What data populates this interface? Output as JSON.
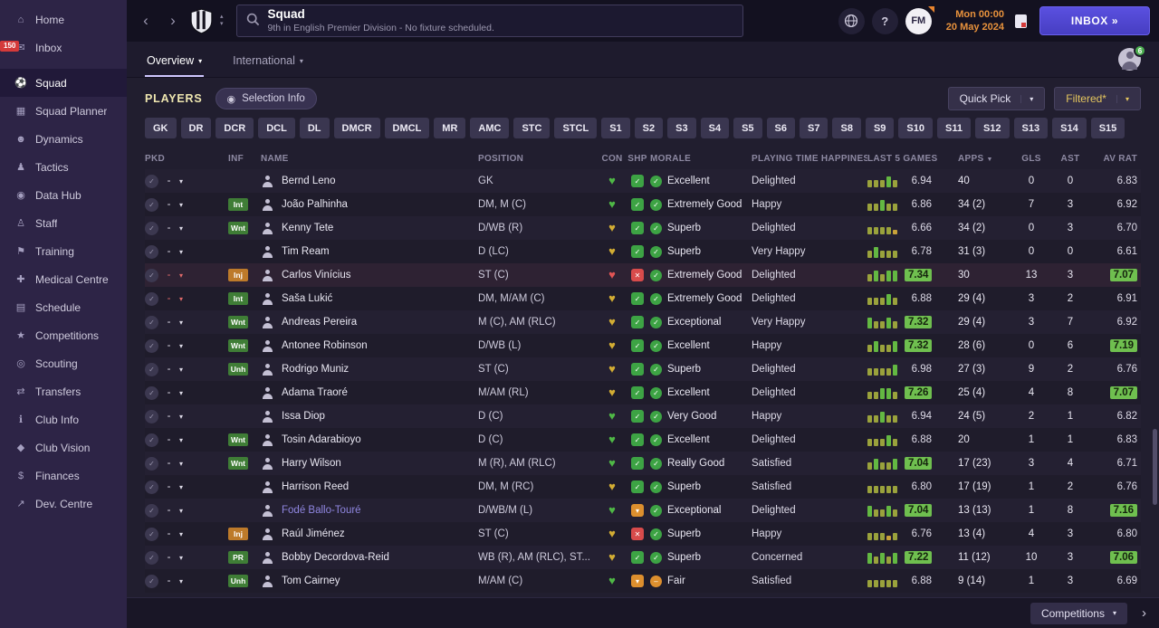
{
  "sidebar": {
    "items": [
      {
        "label": "Home",
        "icon": "home-icon"
      },
      {
        "label": "Inbox",
        "icon": "inbox-icon",
        "badge": "150"
      },
      {
        "label": "Squad",
        "icon": "squad-icon",
        "selected": true
      },
      {
        "label": "Squad Planner",
        "icon": "squad-planner-icon"
      },
      {
        "label": "Dynamics",
        "icon": "dynamics-icon"
      },
      {
        "label": "Tactics",
        "icon": "tactics-icon"
      },
      {
        "label": "Data Hub",
        "icon": "data-hub-icon"
      },
      {
        "label": "Staff",
        "icon": "staff-icon"
      },
      {
        "label": "Training",
        "icon": "training-icon"
      },
      {
        "label": "Medical Centre",
        "icon": "medical-centre-icon"
      },
      {
        "label": "Schedule",
        "icon": "schedule-icon"
      },
      {
        "label": "Competitions",
        "icon": "competitions-icon"
      },
      {
        "label": "Scouting",
        "icon": "scouting-icon"
      },
      {
        "label": "Transfers",
        "icon": "transfers-icon"
      },
      {
        "label": "Club Info",
        "icon": "club-info-icon"
      },
      {
        "label": "Club Vision",
        "icon": "club-vision-icon"
      },
      {
        "label": "Finances",
        "icon": "finances-icon"
      },
      {
        "label": "Dev. Centre",
        "icon": "dev-centre-icon"
      }
    ]
  },
  "topbar": {
    "title": "Squad",
    "subtitle": "9th in English Premier Division - No fixture scheduled.",
    "help": "?",
    "fm_logo": "FM",
    "clock": "Mon 00:00",
    "date": "20 May 2024",
    "inbox_label": "INBOX »"
  },
  "tabs": {
    "overview": "Overview",
    "international": "International",
    "profile_badge": "6"
  },
  "players_bar": {
    "title": "PLAYERS",
    "selection_info": "Selection Info",
    "quick_pick": "Quick Pick",
    "filtered": "Filtered*"
  },
  "position_filters": [
    "GK",
    "DR",
    "DCR",
    "DCL",
    "DL",
    "DMCR",
    "DMCL",
    "MR",
    "AMC",
    "STC",
    "STCL",
    "S1",
    "S2",
    "S3",
    "S4",
    "S5",
    "S6",
    "S7",
    "S8",
    "S9",
    "S10",
    "S11",
    "S12",
    "S13",
    "S14",
    "S15"
  ],
  "table": {
    "columns": [
      "PKD",
      "INF",
      "NAME",
      "POSITION",
      "CON",
      "SHP",
      "MORALE",
      "PLAYING TIME HAPPINESS",
      "LAST 5 GAMES",
      "APPS",
      "GLS",
      "AST",
      "AV RAT"
    ],
    "sorted_column": "APPS",
    "rows": [
      {
        "name": "Bernd Leno",
        "link": false,
        "inf": "",
        "inf_color": "",
        "position": "GK",
        "con": "g",
        "shp": "g",
        "morale": "Excellent",
        "morale_color": "g",
        "happiness": "Delighted",
        "last5_bars": [
          2,
          2,
          2,
          3,
          2
        ],
        "last5": "6.94",
        "last5_hl": false,
        "apps": "40",
        "gls": "0",
        "ast": "0",
        "av_rat": "6.83",
        "av_rat_hl": false,
        "pkd_red": false,
        "row_tint": false
      },
      {
        "name": "João Palhinha",
        "link": false,
        "inf": "Int",
        "inf_color": "green",
        "position": "DM, M (C)",
        "con": "g",
        "shp": "g",
        "morale": "Extremely Good",
        "morale_color": "g",
        "happiness": "Happy",
        "last5_bars": [
          2,
          2,
          3,
          2,
          2
        ],
        "last5": "6.86",
        "last5_hl": false,
        "apps": "34 (2)",
        "gls": "7",
        "ast": "3",
        "av_rat": "6.92",
        "av_rat_hl": false,
        "pkd_red": false,
        "row_tint": false
      },
      {
        "name": "Kenny Tete",
        "link": false,
        "inf": "Wnt",
        "inf_color": "green",
        "position": "D/WB (R)",
        "con": "y",
        "shp": "g",
        "morale": "Superb",
        "morale_color": "g",
        "happiness": "Delighted",
        "last5_bars": [
          2,
          2,
          2,
          2,
          1
        ],
        "last5": "6.66",
        "last5_hl": false,
        "apps": "34 (2)",
        "gls": "0",
        "ast": "3",
        "av_rat": "6.70",
        "av_rat_hl": false,
        "pkd_red": false,
        "row_tint": false
      },
      {
        "name": "Tim Ream",
        "link": false,
        "inf": "",
        "inf_color": "",
        "position": "D (LC)",
        "con": "y",
        "shp": "g",
        "morale": "Superb",
        "morale_color": "g",
        "happiness": "Very Happy",
        "last5_bars": [
          2,
          3,
          2,
          2,
          2
        ],
        "last5": "6.78",
        "last5_hl": false,
        "apps": "31 (3)",
        "gls": "0",
        "ast": "0",
        "av_rat": "6.61",
        "av_rat_hl": false,
        "pkd_red": false,
        "row_tint": false
      },
      {
        "name": "Carlos Vinícius",
        "link": false,
        "inf": "Inj",
        "inf_color": "orange",
        "position": "ST (C)",
        "con": "r",
        "shp": "r",
        "morale": "Extremely Good",
        "morale_color": "g",
        "happiness": "Delighted",
        "last5_bars": [
          2,
          3,
          2,
          3,
          3
        ],
        "last5": "7.34",
        "last5_hl": true,
        "apps": "30",
        "gls": "13",
        "ast": "3",
        "av_rat": "7.07",
        "av_rat_hl": true,
        "pkd_red": true,
        "row_tint": true
      },
      {
        "name": "Saša Lukić",
        "link": false,
        "inf": "Int",
        "inf_color": "green",
        "position": "DM, M/AM (C)",
        "con": "y",
        "shp": "g",
        "morale": "Extremely Good",
        "morale_color": "g",
        "happiness": "Delighted",
        "last5_bars": [
          2,
          2,
          2,
          3,
          2
        ],
        "last5": "6.88",
        "last5_hl": false,
        "apps": "29 (4)",
        "gls": "3",
        "ast": "2",
        "av_rat": "6.91",
        "av_rat_hl": false,
        "pkd_red": true,
        "row_tint": false
      },
      {
        "name": "Andreas Pereira",
        "link": false,
        "inf": "Wnt",
        "inf_color": "green",
        "position": "M (C), AM (RLC)",
        "con": "y",
        "shp": "g",
        "morale": "Exceptional",
        "morale_color": "g",
        "happiness": "Very Happy",
        "last5_bars": [
          3,
          2,
          2,
          3,
          2
        ],
        "last5": "7.32",
        "last5_hl": true,
        "apps": "29 (4)",
        "gls": "3",
        "ast": "7",
        "av_rat": "6.92",
        "av_rat_hl": false,
        "pkd_red": false,
        "row_tint": false
      },
      {
        "name": "Antonee Robinson",
        "link": false,
        "inf": "Wnt",
        "inf_color": "green",
        "position": "D/WB (L)",
        "con": "y",
        "shp": "g",
        "morale": "Excellent",
        "morale_color": "g",
        "happiness": "Happy",
        "last5_bars": [
          2,
          3,
          2,
          2,
          3
        ],
        "last5": "7.32",
        "last5_hl": true,
        "apps": "28 (6)",
        "gls": "0",
        "ast": "6",
        "av_rat": "7.19",
        "av_rat_hl": true,
        "pkd_red": false,
        "row_tint": false
      },
      {
        "name": "Rodrigo Muniz",
        "link": false,
        "inf": "Unh",
        "inf_color": "green",
        "position": "ST (C)",
        "con": "y",
        "shp": "g",
        "morale": "Superb",
        "morale_color": "g",
        "happiness": "Delighted",
        "last5_bars": [
          2,
          2,
          2,
          2,
          3
        ],
        "last5": "6.98",
        "last5_hl": false,
        "apps": "27 (3)",
        "gls": "9",
        "ast": "2",
        "av_rat": "6.76",
        "av_rat_hl": false,
        "pkd_red": false,
        "row_tint": false
      },
      {
        "name": "Adama Traoré",
        "link": false,
        "inf": "",
        "inf_color": "",
        "position": "M/AM (RL)",
        "con": "y",
        "shp": "g",
        "morale": "Excellent",
        "morale_color": "g",
        "happiness": "Delighted",
        "last5_bars": [
          2,
          2,
          3,
          3,
          2
        ],
        "last5": "7.26",
        "last5_hl": true,
        "apps": "25 (4)",
        "gls": "4",
        "ast": "8",
        "av_rat": "7.07",
        "av_rat_hl": true,
        "pkd_red": false,
        "row_tint": false
      },
      {
        "name": "Issa Diop",
        "link": false,
        "inf": "",
        "inf_color": "",
        "position": "D (C)",
        "con": "g",
        "shp": "g",
        "morale": "Very Good",
        "morale_color": "g",
        "happiness": "Happy",
        "last5_bars": [
          2,
          2,
          3,
          2,
          2
        ],
        "last5": "6.94",
        "last5_hl": false,
        "apps": "24 (5)",
        "gls": "2",
        "ast": "1",
        "av_rat": "6.82",
        "av_rat_hl": false,
        "pkd_red": false,
        "row_tint": false
      },
      {
        "name": "Tosin Adarabioyo",
        "link": false,
        "inf": "Wnt",
        "inf_color": "green",
        "position": "D (C)",
        "con": "g",
        "shp": "g",
        "morale": "Excellent",
        "morale_color": "g",
        "happiness": "Delighted",
        "last5_bars": [
          2,
          2,
          2,
          3,
          2
        ],
        "last5": "6.88",
        "last5_hl": false,
        "apps": "20",
        "gls": "1",
        "ast": "1",
        "av_rat": "6.83",
        "av_rat_hl": false,
        "pkd_red": false,
        "row_tint": false
      },
      {
        "name": "Harry Wilson",
        "link": false,
        "inf": "Wnt",
        "inf_color": "green",
        "position": "M (R), AM (RLC)",
        "con": "g",
        "shp": "g",
        "morale": "Really Good",
        "morale_color": "g",
        "happiness": "Satisfied",
        "last5_bars": [
          2,
          3,
          2,
          2,
          3
        ],
        "last5": "7.04",
        "last5_hl": true,
        "apps": "17 (23)",
        "gls": "3",
        "ast": "4",
        "av_rat": "6.71",
        "av_rat_hl": false,
        "pkd_red": false,
        "row_tint": false
      },
      {
        "name": "Harrison Reed",
        "link": false,
        "inf": "",
        "inf_color": "",
        "position": "DM, M (RC)",
        "con": "y",
        "shp": "g",
        "morale": "Superb",
        "morale_color": "g",
        "happiness": "Satisfied",
        "last5_bars": [
          2,
          2,
          2,
          2,
          2
        ],
        "last5": "6.80",
        "last5_hl": false,
        "apps": "17 (19)",
        "gls": "1",
        "ast": "2",
        "av_rat": "6.76",
        "av_rat_hl": false,
        "pkd_red": false,
        "row_tint": false
      },
      {
        "name": "Fodé Ballo-Touré",
        "link": true,
        "inf": "",
        "inf_color": "",
        "position": "D/WB/M (L)",
        "con": "g",
        "shp": "o",
        "morale": "Exceptional",
        "morale_color": "g",
        "happiness": "Delighted",
        "last5_bars": [
          3,
          2,
          2,
          3,
          2
        ],
        "last5": "7.04",
        "last5_hl": true,
        "apps": "13 (13)",
        "gls": "1",
        "ast": "8",
        "av_rat": "7.16",
        "av_rat_hl": true,
        "pkd_red": false,
        "row_tint": false
      },
      {
        "name": "Raúl Jiménez",
        "link": false,
        "inf": "Inj",
        "inf_color": "orange",
        "position": "ST (C)",
        "con": "y",
        "shp": "r",
        "morale": "Superb",
        "morale_color": "g",
        "happiness": "Happy",
        "last5_bars": [
          2,
          2,
          2,
          1,
          2
        ],
        "last5": "6.76",
        "last5_hl": false,
        "apps": "13 (4)",
        "gls": "4",
        "ast": "3",
        "av_rat": "6.80",
        "av_rat_hl": false,
        "pkd_red": false,
        "row_tint": false
      },
      {
        "name": "Bobby Decordova-Reid",
        "link": false,
        "inf": "PR",
        "inf_color": "green",
        "position": "WB (R), AM (RLC), ST...",
        "con": "y",
        "shp": "g",
        "morale": "Superb",
        "morale_color": "g",
        "happiness": "Concerned",
        "last5_bars": [
          3,
          2,
          3,
          2,
          3
        ],
        "last5": "7.22",
        "last5_hl": true,
        "apps": "11 (12)",
        "gls": "10",
        "ast": "3",
        "av_rat": "7.06",
        "av_rat_hl": true,
        "pkd_red": false,
        "row_tint": false
      },
      {
        "name": "Tom Cairney",
        "link": false,
        "inf": "Unh",
        "inf_color": "green",
        "position": "M/AM (C)",
        "con": "g",
        "shp": "o",
        "morale": "Fair",
        "morale_color": "o",
        "happiness": "Satisfied",
        "last5_bars": [
          2,
          2,
          2,
          2,
          2
        ],
        "last5": "6.88",
        "last5_hl": false,
        "apps": "9 (14)",
        "gls": "1",
        "ast": "3",
        "av_rat": "6.69",
        "av_rat_hl": false,
        "pkd_red": false,
        "row_tint": false
      }
    ]
  },
  "footer": {
    "competitions": "Competitions"
  }
}
